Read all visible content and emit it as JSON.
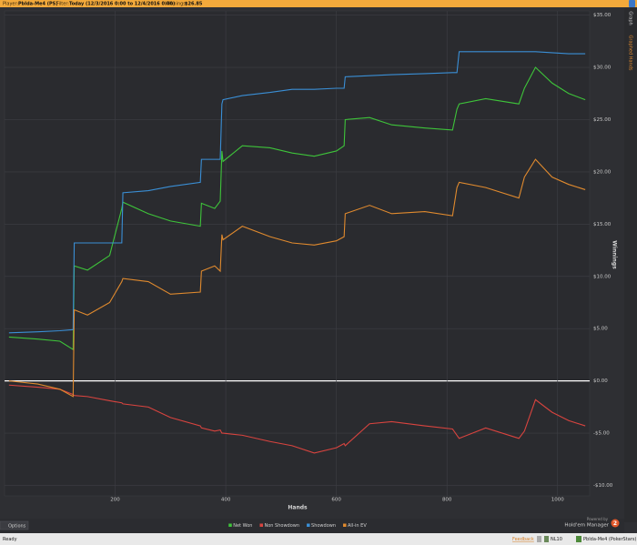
{
  "header": {
    "player_label": "Player:",
    "player": "PbIda-Me4 (PS)",
    "filter_label": "Filter:",
    "filter": "Today (12/3/2016 0:00 to 12/4/2016 0:00)",
    "winnings_label": "Winnings:",
    "winnings": "$26.85"
  },
  "tabs": [
    "Graph",
    "Graphed Hands"
  ],
  "chart_data": {
    "type": "line",
    "xlabel": "Hands",
    "ylabel": "Winnings",
    "x": [
      8,
      60,
      100,
      124,
      126,
      150,
      190,
      212,
      214,
      260,
      300,
      354,
      356,
      380,
      390,
      393,
      395,
      430,
      480,
      520,
      560,
      600,
      614,
      616,
      660,
      700,
      760,
      810,
      818,
      822,
      870,
      930,
      940,
      960,
      990,
      1020,
      1050
    ],
    "series": [
      {
        "name": "Net Won",
        "color": "#3ec43a",
        "values": [
          4.2,
          4.0,
          3.8,
          3.0,
          11.0,
          10.6,
          12.0,
          16.5,
          17.1,
          16.0,
          15.3,
          14.8,
          17.0,
          16.5,
          17.2,
          22.0,
          21.0,
          22.5,
          22.3,
          21.8,
          21.5,
          22.0,
          22.5,
          25.0,
          25.2,
          24.5,
          24.2,
          24.0,
          26.0,
          26.5,
          27.0,
          26.5,
          28.0,
          30.0,
          28.5,
          27.5,
          26.9
        ]
      },
      {
        "name": "Non Showdown",
        "color": "#d9443f",
        "values": [
          -0.4,
          -0.6,
          -0.8,
          -1.3,
          -1.4,
          -1.5,
          -1.9,
          -2.1,
          -2.2,
          -2.5,
          -3.5,
          -4.3,
          -4.5,
          -4.8,
          -4.7,
          -5.0,
          -5.0,
          -5.2,
          -5.8,
          -6.2,
          -6.9,
          -6.4,
          -6.0,
          -6.2,
          -4.1,
          -3.9,
          -4.3,
          -4.6,
          -5.2,
          -5.5,
          -4.5,
          -5.5,
          -4.8,
          -1.8,
          -3.0,
          -3.8,
          -4.3
        ]
      },
      {
        "name": "Showdown",
        "color": "#3a8fd6",
        "values": [
          4.6,
          4.7,
          4.8,
          4.9,
          13.2,
          13.2,
          13.2,
          13.2,
          18.0,
          18.2,
          18.6,
          19.0,
          21.2,
          21.2,
          21.2,
          26.5,
          26.9,
          27.3,
          27.6,
          27.9,
          27.9,
          28.0,
          28.0,
          29.1,
          29.2,
          29.3,
          29.4,
          29.5,
          29.5,
          31.5,
          31.5,
          31.5,
          31.5,
          31.5,
          31.4,
          31.3,
          31.3
        ]
      },
      {
        "name": "All-in EV",
        "color": "#e08a2e",
        "values": [
          0.0,
          -0.3,
          -0.8,
          -1.5,
          6.8,
          6.3,
          7.5,
          9.5,
          9.8,
          9.5,
          8.3,
          8.5,
          10.5,
          11.0,
          10.5,
          14.0,
          13.5,
          14.8,
          13.8,
          13.2,
          13.0,
          13.4,
          13.8,
          16.0,
          16.8,
          16.0,
          16.2,
          15.8,
          18.5,
          19.0,
          18.5,
          17.5,
          19.5,
          21.2,
          19.5,
          18.8,
          18.3
        ]
      }
    ],
    "xlim": [
      0,
      1058
    ],
    "ylim": [
      -11,
      35.4
    ],
    "xticks": [
      200,
      400,
      600,
      800,
      1000
    ],
    "yticks": [
      {
        "value": 35,
        "label": "$35.00"
      },
      {
        "value": 30,
        "label": "$30.00"
      },
      {
        "value": 25,
        "label": "$25.00"
      },
      {
        "value": 20,
        "label": "$20.00"
      },
      {
        "value": 15,
        "label": "$15.00"
      },
      {
        "value": 10,
        "label": "$10.00"
      },
      {
        "value": 5,
        "label": "$5.00"
      },
      {
        "value": 0,
        "label": "$0.00"
      },
      {
        "value": -5,
        "label": "-$5.00"
      },
      {
        "value": -10,
        "label": "-$10.00"
      }
    ],
    "grid": true,
    "legend": "bottom"
  },
  "options_button": "Options",
  "branding": {
    "powered_by": "Powered by",
    "product": "Hold'em Manager",
    "badge": "2"
  },
  "status_bar": {
    "status": "Ready",
    "feedback": "Feedback",
    "stakes": "NL10",
    "account": "PbIda-Me4 (PokerStars)"
  }
}
